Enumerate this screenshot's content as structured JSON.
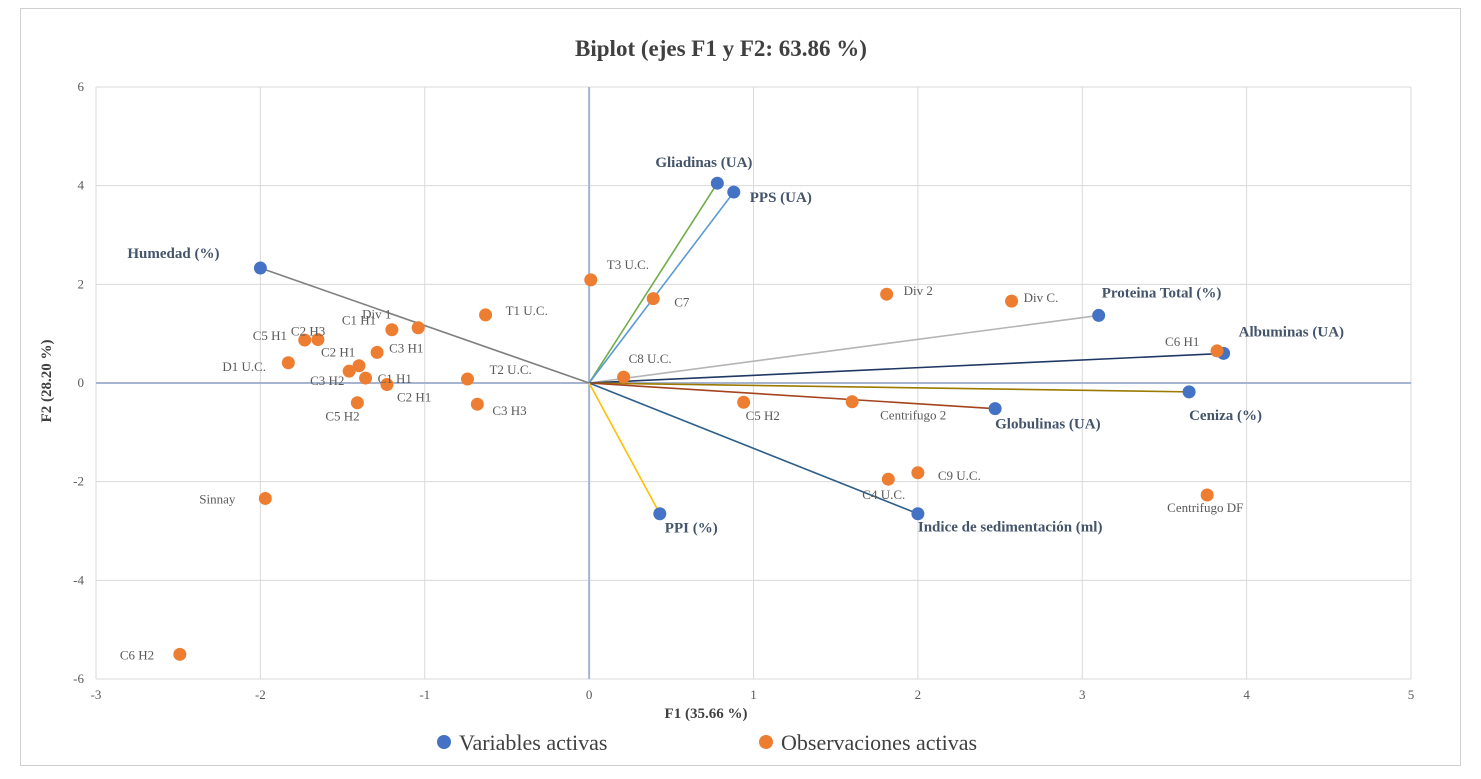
{
  "colors": {
    "variable": "#4472c4",
    "observation": "#ed7d31",
    "grid": "#d9d9d9",
    "axis": "#a6b4cf"
  },
  "chart_data": {
    "type": "scatter",
    "title": "Biplot (ejes F1 y F2: 63.86 %)",
    "xlabel": "F1 (35.66 %)",
    "ylabel": "F2 (28.20 %)",
    "xlim": [
      -3,
      5
    ],
    "ylim": [
      -6,
      6
    ],
    "xticks": [
      -3,
      -2,
      -1,
      0,
      1,
      2,
      3,
      4,
      5
    ],
    "yticks": [
      -6,
      -4,
      -2,
      0,
      2,
      4,
      6
    ],
    "grid": true,
    "legend": {
      "placement": "bottom",
      "entries": [
        "Variables activas",
        "Observaciones activas"
      ]
    },
    "variables": [
      {
        "name": "Gliadinas (UA)",
        "x": 0.78,
        "y": 4.05,
        "color": "#70ad47"
      },
      {
        "name": "PPS (UA)",
        "x": 0.88,
        "y": 3.87,
        "color": "#5b9bd5"
      },
      {
        "name": "Humedad (%)",
        "x": -2.0,
        "y": 2.33,
        "color": "#7f7f7f"
      },
      {
        "name": "Proteina Total (%)",
        "x": 3.1,
        "y": 1.37,
        "color": "#b4b4b4"
      },
      {
        "name": "Albuminas (UA)",
        "x": 3.86,
        "y": 0.6,
        "color": "#203864"
      },
      {
        "name": "Ceniza (%)",
        "x": 3.65,
        "y": -0.18,
        "color": "#9c7a00"
      },
      {
        "name": "Globulinas (UA)",
        "x": 2.47,
        "y": -0.52,
        "color": "#a5431d"
      },
      {
        "name": "Indice de sedimentación (ml)",
        "x": 2.0,
        "y": -2.65,
        "color": "#2e5f8a"
      },
      {
        "name": "PPI (%)",
        "x": 0.43,
        "y": -2.65,
        "color": "#ffc000"
      }
    ],
    "observations": [
      {
        "name": "T3 U.C.",
        "x": 0.01,
        "y": 2.09
      },
      {
        "name": "C7",
        "x": 0.39,
        "y": 1.71
      },
      {
        "name": "Div 1",
        "x": -1.04,
        "y": 1.12
      },
      {
        "name": "T1 U.C.",
        "x": -0.63,
        "y": 1.38
      },
      {
        "name": "C2 H3",
        "x": -1.65,
        "y": 0.88
      },
      {
        "name": "C1 H1",
        "x": -1.2,
        "y": 1.08
      },
      {
        "name": "C5 H1",
        "x": -1.73,
        "y": 0.87
      },
      {
        "name": "C2 H1",
        "x": -1.4,
        "y": 0.35
      },
      {
        "name": "C3 H1",
        "x": -1.29,
        "y": 0.62
      },
      {
        "name": "D1 U.C.",
        "x": -1.83,
        "y": 0.41
      },
      {
        "name": "C1 H1",
        "x": -1.36,
        "y": 0.1
      },
      {
        "name": "C3 H2",
        "x": -1.46,
        "y": 0.24
      },
      {
        "name": "C2 H1",
        "x": -1.23,
        "y": -0.03
      },
      {
        "name": "C5 H2",
        "x": -1.41,
        "y": -0.4
      },
      {
        "name": "T2 U.C.",
        "x": -0.74,
        "y": 0.08
      },
      {
        "name": "C3 H3",
        "x": -0.68,
        "y": -0.43
      },
      {
        "name": "C8 U.C.",
        "x": 0.21,
        "y": 0.12
      },
      {
        "name": "Div 2",
        "x": 1.81,
        "y": 1.8
      },
      {
        "name": "Div C.",
        "x": 2.57,
        "y": 1.66
      },
      {
        "name": "C6 H1",
        "x": 3.82,
        "y": 0.65
      },
      {
        "name": "C5 H2",
        "x": 0.94,
        "y": -0.39
      },
      {
        "name": "Centrifugo 2",
        "x": 1.6,
        "y": -0.38
      },
      {
        "name": "C9 U.C.",
        "x": 2.0,
        "y": -1.82
      },
      {
        "name": "C4 U.C.",
        "x": 1.82,
        "y": -1.95
      },
      {
        "name": "Centrifugo DF",
        "x": 3.76,
        "y": -2.27
      },
      {
        "name": "Sinnay",
        "x": -1.97,
        "y": -2.34
      },
      {
        "name": "C6 H2",
        "x": -2.49,
        "y": -5.5
      }
    ]
  }
}
